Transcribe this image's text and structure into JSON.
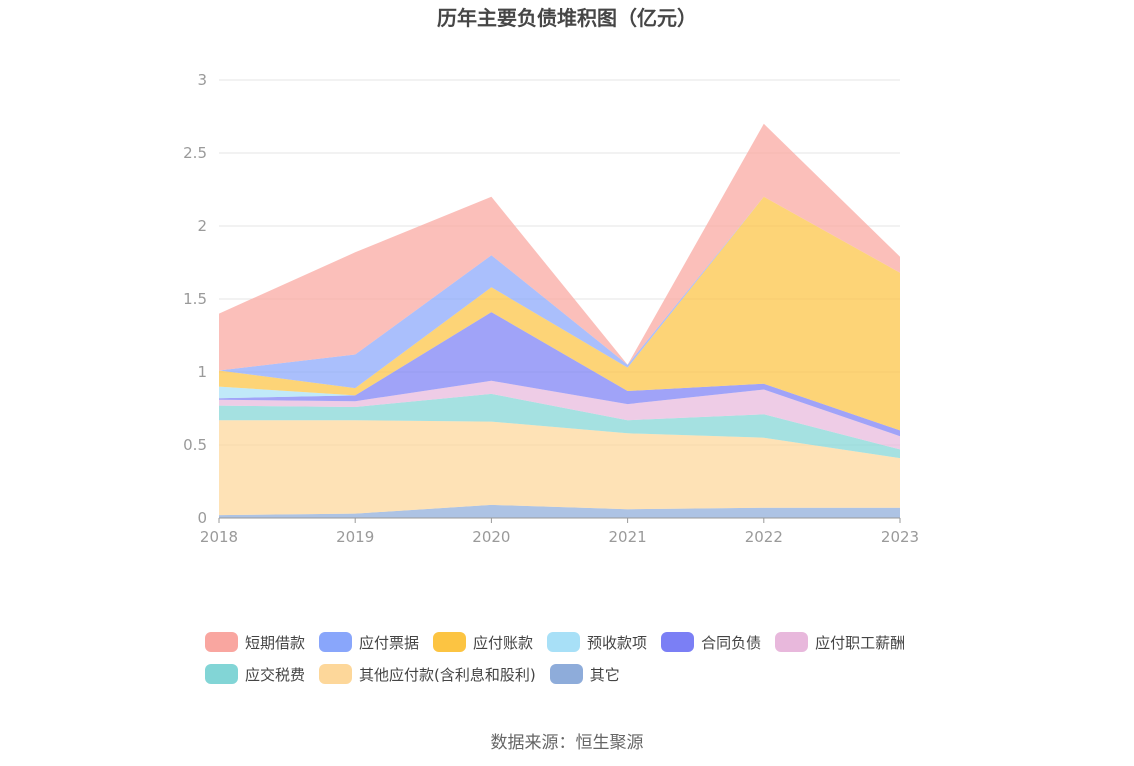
{
  "chart_data": {
    "type": "area",
    "stacked": true,
    "title": "历年主要负债堆积图（亿元）",
    "x": [
      "2018",
      "2019",
      "2020",
      "2021",
      "2022",
      "2023"
    ],
    "ylim": [
      0,
      3
    ],
    "yticks": [
      "0",
      "0.5",
      "1",
      "1.5",
      "2",
      "2.5",
      "3"
    ],
    "grid": true,
    "legend_position": "bottom",
    "series": [
      {
        "name": "其它",
        "color": "#8eacda",
        "values": [
          0.02,
          0.03,
          0.09,
          0.06,
          0.07,
          0.07
        ]
      },
      {
        "name": "其他应付款(含利息和股利)",
        "color": "#fdd79a",
        "values": [
          0.65,
          0.64,
          0.57,
          0.52,
          0.48,
          0.34
        ]
      },
      {
        "name": "应交税费",
        "color": "#82d5d6",
        "values": [
          0.1,
          0.09,
          0.19,
          0.09,
          0.16,
          0.06
        ]
      },
      {
        "name": "应付职工薪酬",
        "color": "#e8b8dc",
        "values": [
          0.04,
          0.04,
          0.09,
          0.11,
          0.17,
          0.09
        ]
      },
      {
        "name": "合同负债",
        "color": "#7b7ff5",
        "values": [
          0.01,
          0.04,
          0.47,
          0.09,
          0.04,
          0.04
        ]
      },
      {
        "name": "预收款项",
        "color": "#a8e0f7",
        "values": [
          0.08,
          0.0,
          0.0,
          0.0,
          0.0,
          0.0
        ]
      },
      {
        "name": "应付账款",
        "color": "#fcc442",
        "values": [
          0.11,
          0.05,
          0.17,
          0.16,
          1.28,
          1.08
        ]
      },
      {
        "name": "应付票据",
        "color": "#89a6fb",
        "values": [
          0.0,
          0.23,
          0.22,
          0.02,
          0.0,
          0.0
        ]
      },
      {
        "name": "短期借款",
        "color": "#f9a6a0",
        "values": [
          0.39,
          0.7,
          0.4,
          0.0,
          0.5,
          0.11
        ]
      }
    ]
  },
  "legend_order": [
    "短期借款",
    "应付票据",
    "应付账款",
    "预收款项",
    "合同负债",
    "应付职工薪酬",
    "应交税费",
    "其他应付款(含利息和股利)",
    "其它"
  ],
  "legend_colors": {
    "短期借款": "#f9a6a0",
    "应付票据": "#89a6fb",
    "应付账款": "#fcc442",
    "预收款项": "#a8e0f7",
    "合同负债": "#7b7ff5",
    "应付职工薪酬": "#e8b8dc",
    "应交税费": "#82d5d6",
    "其他应付款(含利息和股利)": "#fdd79a",
    "其它": "#8eacda"
  },
  "source": "数据来源：恒生聚源"
}
